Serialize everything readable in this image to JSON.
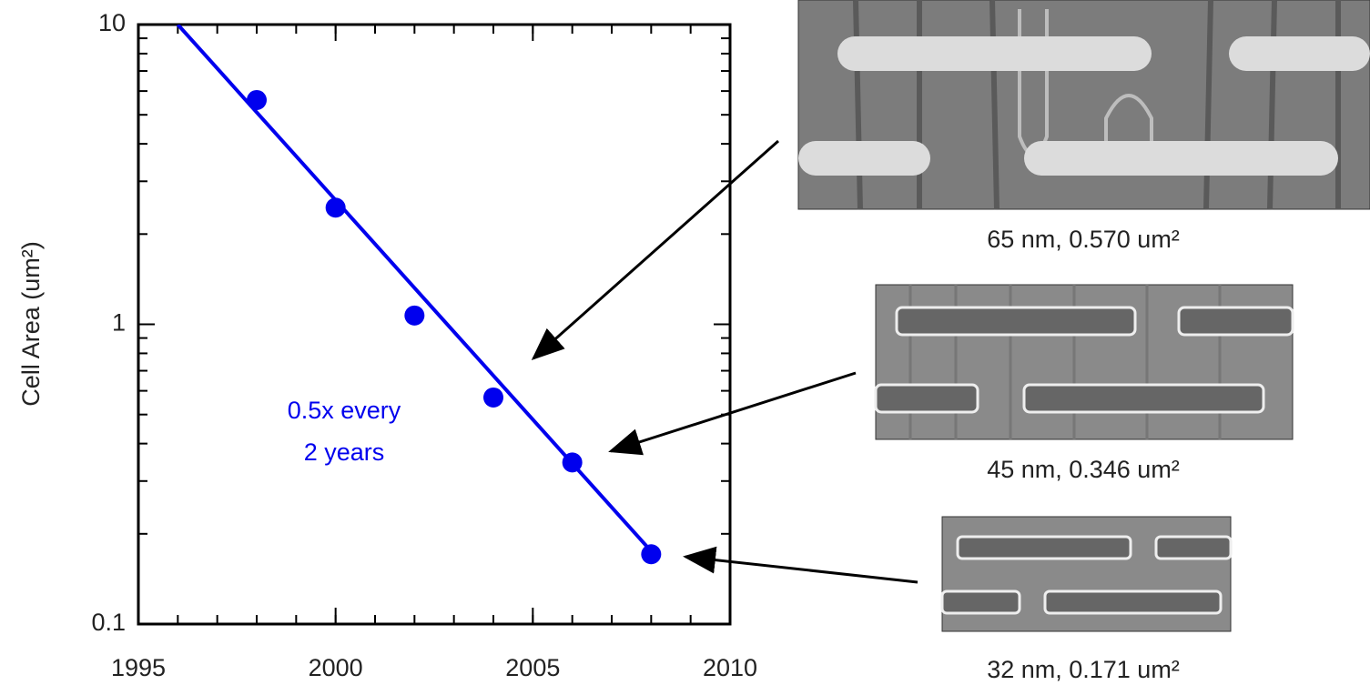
{
  "chart_data": {
    "type": "scatter",
    "y_label": "Cell Area (um²)",
    "xlim": [
      1995,
      2010
    ],
    "xticks": [
      1995,
      2000,
      2005,
      2010
    ],
    "ylim": [
      0.1,
      10
    ],
    "yticks": [
      0.1,
      1,
      10
    ],
    "log_y": true,
    "minor_ticks": true,
    "series": [
      {
        "style": "markers",
        "color": "#0000ee",
        "x": [
          1998,
          2000,
          2002,
          2004,
          2006,
          2008
        ],
        "values": [
          5.6,
          2.45,
          1.07,
          0.57,
          0.346,
          0.171
        ]
      },
      {
        "style": "line",
        "color": "#0000ee",
        "x": [
          1996,
          2008
        ],
        "values": [
          10,
          0.175
        ]
      }
    ],
    "annotations": [
      "0.5x every",
      "2 years"
    ]
  },
  "figures": [
    {
      "caption": "65 nm, 0.570 um²"
    },
    {
      "caption": "45 nm, 0.346 um²"
    },
    {
      "caption": "32 nm, 0.171 um²"
    }
  ]
}
